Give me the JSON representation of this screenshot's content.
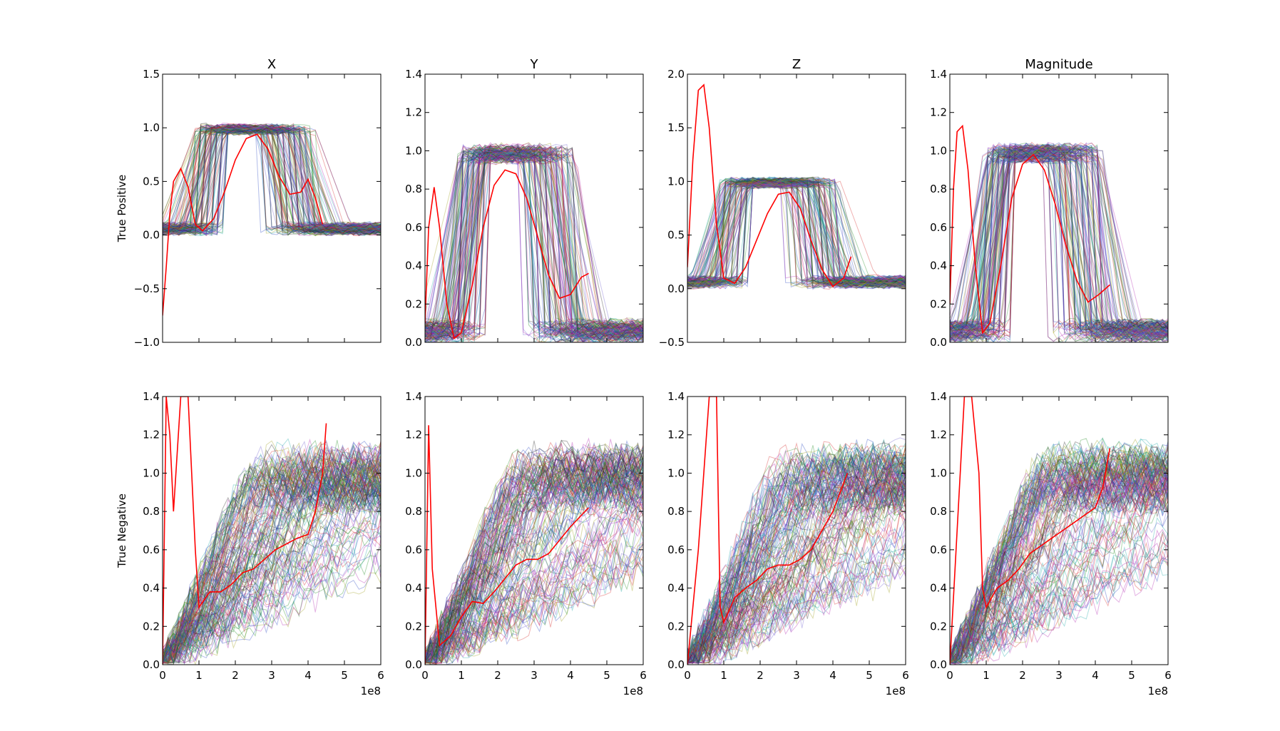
{
  "chart_data": [
    {
      "type": "line",
      "title": "X",
      "ylabel": "True Positive",
      "xlabel": "",
      "xlim": [
        0,
        6
      ],
      "ylim": [
        -1.0,
        1.5
      ],
      "x_offset_text": "1e8",
      "xticks": [
        "0",
        "1",
        "2",
        "3",
        "4",
        "5",
        "6"
      ],
      "yticks": [
        "−1.0",
        "−0.5",
        "0.0",
        "0.5",
        "1.0",
        "1.5"
      ],
      "ytick_values": [
        -1.0,
        -0.5,
        0.0,
        0.5,
        1.0,
        1.5
      ],
      "show_xtick_labels": false,
      "highlight_series": {
        "color": "#ff0000",
        "x": [
          0.0,
          0.1,
          0.2,
          0.3,
          0.5,
          0.7,
          0.9,
          1.1,
          1.4,
          1.7,
          2.0,
          2.3,
          2.6,
          2.9,
          3.2,
          3.5,
          3.8,
          4.0,
          4.2,
          4.4
        ],
        "y": [
          -0.75,
          -0.3,
          0.2,
          0.5,
          0.62,
          0.45,
          0.1,
          0.04,
          0.15,
          0.4,
          0.7,
          0.9,
          0.94,
          0.8,
          0.55,
          0.38,
          0.4,
          0.52,
          0.35,
          0.1
        ]
      }
    },
    {
      "type": "line",
      "title": "Y",
      "ylabel": "",
      "xlabel": "",
      "xlim": [
        0,
        6
      ],
      "ylim": [
        0.0,
        1.4
      ],
      "x_offset_text": "1e8",
      "xticks": [
        "0",
        "1",
        "2",
        "3",
        "4",
        "5",
        "6"
      ],
      "yticks": [
        "0.0",
        "0.2",
        "0.4",
        "0.6",
        "0.8",
        "1.0",
        "1.2",
        "1.4"
      ],
      "ytick_values": [
        0.0,
        0.2,
        0.4,
        0.6,
        0.8,
        1.0,
        1.2,
        1.4
      ],
      "show_xtick_labels": false,
      "highlight_series": {
        "color": "#ff0000",
        "x": [
          0.0,
          0.1,
          0.25,
          0.4,
          0.6,
          0.8,
          1.0,
          1.3,
          1.6,
          1.9,
          2.2,
          2.5,
          2.8,
          3.1,
          3.4,
          3.7,
          4.0,
          4.3,
          4.5
        ],
        "y": [
          0.1,
          0.6,
          0.81,
          0.6,
          0.2,
          0.02,
          0.05,
          0.3,
          0.6,
          0.82,
          0.9,
          0.88,
          0.75,
          0.55,
          0.35,
          0.23,
          0.25,
          0.34,
          0.36
        ]
      }
    },
    {
      "type": "line",
      "title": "Z",
      "ylabel": "",
      "xlabel": "",
      "xlim": [
        0,
        6
      ],
      "ylim": [
        -0.5,
        2.0
      ],
      "x_offset_text": "1e8",
      "xticks": [
        "0",
        "1",
        "2",
        "3",
        "4",
        "5",
        "6"
      ],
      "yticks": [
        "−0.5",
        "0.0",
        "0.5",
        "1.0",
        "1.5",
        "2.0"
      ],
      "ytick_values": [
        -0.5,
        0.0,
        0.5,
        1.0,
        1.5,
        2.0
      ],
      "show_xtick_labels": false,
      "highlight_series": {
        "color": "#ff0000",
        "x": [
          0.0,
          0.15,
          0.3,
          0.45,
          0.6,
          0.8,
          1.0,
          1.3,
          1.6,
          1.9,
          2.2,
          2.5,
          2.8,
          3.1,
          3.4,
          3.7,
          4.0,
          4.3,
          4.5
        ],
        "y": [
          0.2,
          1.2,
          1.85,
          1.9,
          1.5,
          0.6,
          0.1,
          0.05,
          0.2,
          0.45,
          0.7,
          0.88,
          0.9,
          0.75,
          0.45,
          0.18,
          0.02,
          0.1,
          0.3
        ]
      }
    },
    {
      "type": "line",
      "title": "Magnitude",
      "ylabel": "",
      "xlabel": "",
      "xlim": [
        0,
        6
      ],
      "ylim": [
        0.0,
        1.4
      ],
      "x_offset_text": "1e8",
      "xticks": [
        "0",
        "1",
        "2",
        "3",
        "4",
        "5",
        "6"
      ],
      "yticks": [
        "0.0",
        "0.2",
        "0.4",
        "0.6",
        "0.8",
        "1.0",
        "1.2",
        "1.4"
      ],
      "ytick_values": [
        0.0,
        0.2,
        0.4,
        0.6,
        0.8,
        1.0,
        1.2,
        1.4
      ],
      "show_xtick_labels": false,
      "highlight_series": {
        "color": "#ff0000",
        "x": [
          0.0,
          0.1,
          0.2,
          0.35,
          0.5,
          0.7,
          0.9,
          1.1,
          1.4,
          1.7,
          2.0,
          2.3,
          2.6,
          2.9,
          3.2,
          3.5,
          3.8,
          4.1,
          4.4
        ],
        "y": [
          0.2,
          0.8,
          1.1,
          1.13,
          0.9,
          0.4,
          0.05,
          0.1,
          0.4,
          0.75,
          0.93,
          0.98,
          0.9,
          0.72,
          0.5,
          0.32,
          0.21,
          0.25,
          0.3
        ]
      }
    },
    {
      "type": "line",
      "title": "",
      "ylabel": "True Negative",
      "xlabel": "",
      "xlim": [
        0,
        6
      ],
      "ylim": [
        0.0,
        1.4
      ],
      "x_offset_text": "1e8",
      "xticks": [
        "0",
        "1",
        "2",
        "3",
        "4",
        "5",
        "6"
      ],
      "yticks": [
        "0.0",
        "0.2",
        "0.4",
        "0.6",
        "0.8",
        "1.0",
        "1.2",
        "1.4"
      ],
      "ytick_values": [
        0.0,
        0.2,
        0.4,
        0.6,
        0.8,
        1.0,
        1.2,
        1.4
      ],
      "show_xtick_labels": true,
      "highlight_series": {
        "color": "#ff0000",
        "x": [
          0.0,
          0.1,
          0.2,
          0.3,
          0.5,
          0.6,
          0.7,
          0.8,
          0.9,
          1.0,
          1.3,
          1.6,
          1.9,
          2.2,
          2.5,
          2.8,
          3.1,
          3.4,
          3.7,
          4.0,
          4.2,
          4.4,
          4.5
        ],
        "y": [
          0.0,
          1.4,
          1.2,
          0.8,
          1.4,
          1.4,
          1.4,
          1.0,
          0.6,
          0.3,
          0.38,
          0.38,
          0.42,
          0.48,
          0.5,
          0.55,
          0.6,
          0.63,
          0.66,
          0.68,
          0.8,
          1.0,
          1.26
        ]
      }
    },
    {
      "type": "line",
      "title": "",
      "ylabel": "",
      "xlabel": "",
      "xlim": [
        0,
        6
      ],
      "ylim": [
        0.0,
        1.4
      ],
      "x_offset_text": "1e8",
      "xticks": [
        "0",
        "1",
        "2",
        "3",
        "4",
        "5",
        "6"
      ],
      "yticks": [
        "0.0",
        "0.2",
        "0.4",
        "0.6",
        "0.8",
        "1.0",
        "1.2",
        "1.4"
      ],
      "ytick_values": [
        0.0,
        0.2,
        0.4,
        0.6,
        0.8,
        1.0,
        1.2,
        1.4
      ],
      "show_xtick_labels": true,
      "highlight_series": {
        "color": "#ff0000",
        "x": [
          0.0,
          0.1,
          0.2,
          0.4,
          0.7,
          1.0,
          1.3,
          1.6,
          1.9,
          2.2,
          2.5,
          2.8,
          3.1,
          3.4,
          3.7,
          4.0,
          4.3,
          4.5
        ],
        "y": [
          0.0,
          1.25,
          0.5,
          0.1,
          0.15,
          0.25,
          0.33,
          0.32,
          0.38,
          0.45,
          0.52,
          0.55,
          0.55,
          0.58,
          0.65,
          0.72,
          0.78,
          0.82
        ]
      }
    },
    {
      "type": "line",
      "title": "",
      "ylabel": "",
      "xlabel": "",
      "xlim": [
        0,
        6
      ],
      "ylim": [
        0.0,
        1.4
      ],
      "x_offset_text": "1e8",
      "xticks": [
        "0",
        "1",
        "2",
        "3",
        "4",
        "5",
        "6"
      ],
      "yticks": [
        "0.0",
        "0.2",
        "0.4",
        "0.6",
        "0.8",
        "1.0",
        "1.2",
        "1.4"
      ],
      "ytick_values": [
        0.0,
        0.2,
        0.4,
        0.6,
        0.8,
        1.0,
        1.2,
        1.4
      ],
      "show_xtick_labels": true,
      "highlight_series": {
        "color": "#ff0000",
        "x": [
          0.0,
          0.3,
          0.6,
          0.8,
          0.9,
          1.0,
          1.3,
          1.6,
          1.9,
          2.2,
          2.5,
          2.8,
          3.1,
          3.4,
          3.7,
          4.0,
          4.2,
          4.4
        ],
        "y": [
          0.0,
          0.6,
          1.4,
          1.4,
          0.3,
          0.22,
          0.35,
          0.4,
          0.44,
          0.5,
          0.52,
          0.52,
          0.55,
          0.6,
          0.7,
          0.8,
          0.9,
          1.0
        ]
      }
    },
    {
      "type": "line",
      "title": "",
      "ylabel": "",
      "xlabel": "",
      "xlim": [
        0,
        6
      ],
      "ylim": [
        0.0,
        1.4
      ],
      "x_offset_text": "1e8",
      "xticks": [
        "0",
        "1",
        "2",
        "3",
        "4",
        "5",
        "6"
      ],
      "yticks": [
        "0.0",
        "0.2",
        "0.4",
        "0.6",
        "0.8",
        "1.0",
        "1.2",
        "1.4"
      ],
      "ytick_values": [
        0.0,
        0.2,
        0.4,
        0.6,
        0.8,
        1.0,
        1.2,
        1.4
      ],
      "show_xtick_labels": true,
      "highlight_series": {
        "color": "#ff0000",
        "x": [
          0.0,
          0.2,
          0.4,
          0.6,
          0.8,
          0.9,
          1.0,
          1.3,
          1.6,
          1.9,
          2.2,
          2.5,
          2.8,
          3.1,
          3.4,
          3.7,
          4.0,
          4.2,
          4.4
        ],
        "y": [
          0.0,
          0.7,
          1.4,
          1.4,
          1.0,
          0.4,
          0.3,
          0.4,
          0.44,
          0.5,
          0.58,
          0.62,
          0.66,
          0.7,
          0.74,
          0.78,
          0.82,
          0.92,
          1.13
        ]
      }
    }
  ]
}
